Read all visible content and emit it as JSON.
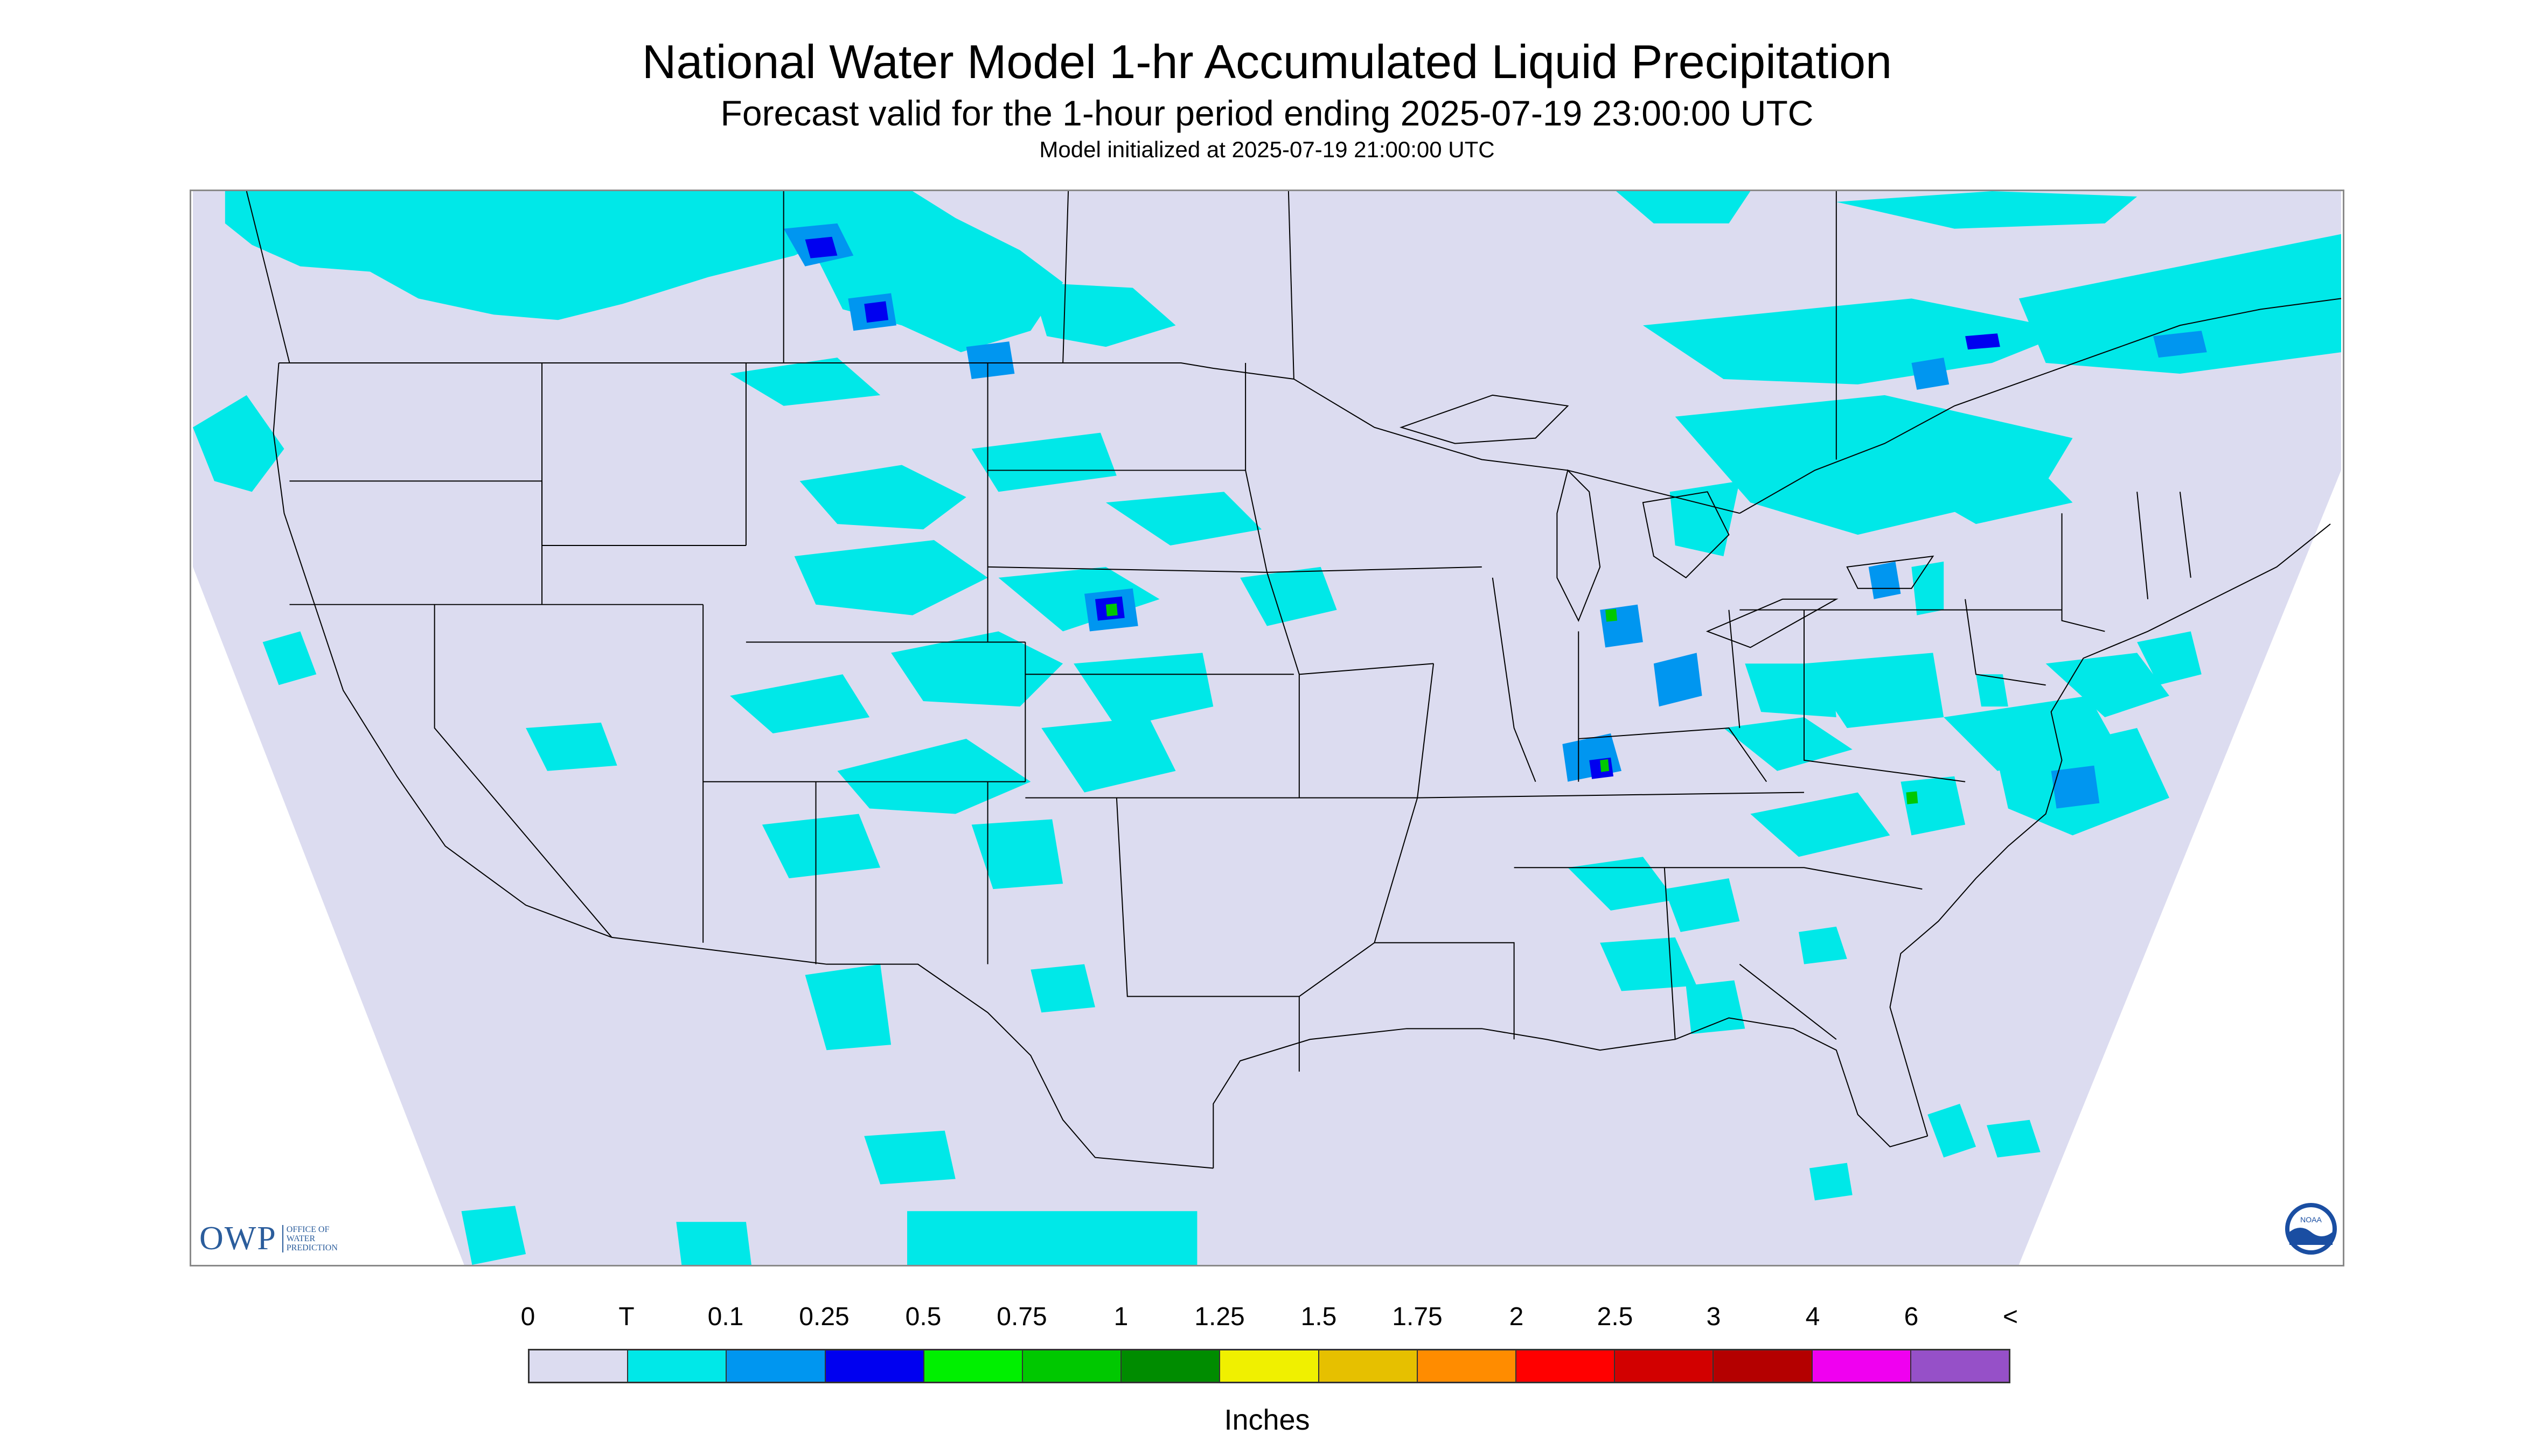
{
  "header": {
    "title": "National Water Model 1-hr Accumulated Liquid Precipitation",
    "subtitle": "Forecast valid for the 1-hour period ending 2025-07-19 23:00:00 UTC",
    "init_line": "Model initialized at 2025-07-19 21:00:00 UTC"
  },
  "logos": {
    "owp_big": "OWP",
    "owp_small": [
      "OFFICE OF",
      "WATER",
      "PREDICTION"
    ],
    "noaa": "NOAA"
  },
  "legend": {
    "labels": [
      "0",
      "T",
      "0.1",
      "0.25",
      "0.5",
      "0.75",
      "1",
      "1.25",
      "1.5",
      "1.75",
      "2",
      "2.5",
      "3",
      "4",
      "6",
      "<"
    ],
    "colors": [
      "#dcdcf0",
      "#00e8e8",
      "#0096f0",
      "#0000f0",
      "#00f000",
      "#00c800",
      "#008c00",
      "#f0f000",
      "#e6c000",
      "#ff8c00",
      "#ff0000",
      "#d20000",
      "#b40000",
      "#f000f0",
      "#9650c8"
    ],
    "units": "Inches"
  },
  "map": {
    "background_color": "#dcdcf0",
    "outside_color": "#ffffff",
    "boundary_color": "#000000"
  }
}
